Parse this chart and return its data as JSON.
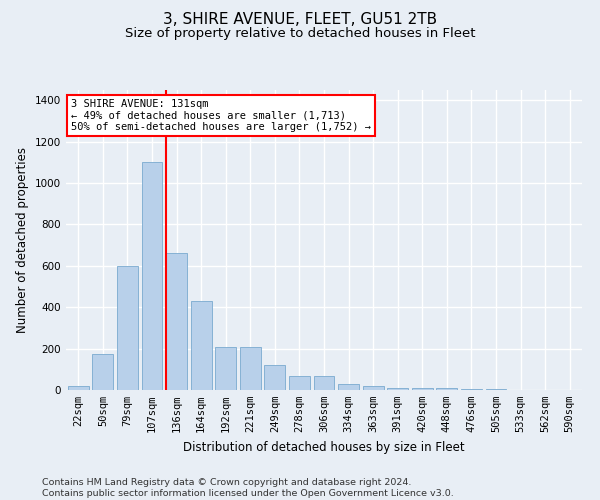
{
  "title": "3, SHIRE AVENUE, FLEET, GU51 2TB",
  "subtitle": "Size of property relative to detached houses in Fleet",
  "xlabel": "Distribution of detached houses by size in Fleet",
  "ylabel": "Number of detached properties",
  "categories": [
    "22sqm",
    "50sqm",
    "79sqm",
    "107sqm",
    "136sqm",
    "164sqm",
    "192sqm",
    "221sqm",
    "249sqm",
    "278sqm",
    "306sqm",
    "334sqm",
    "363sqm",
    "391sqm",
    "420sqm",
    "448sqm",
    "476sqm",
    "505sqm",
    "533sqm",
    "562sqm",
    "590sqm"
  ],
  "values": [
    20,
    175,
    600,
    1100,
    660,
    430,
    210,
    210,
    120,
    70,
    70,
    30,
    20,
    10,
    10,
    10,
    5,
    3,
    2,
    1,
    0
  ],
  "bar_color": "#b8d0ea",
  "bar_edge_color": "#7aaacf",
  "red_line_x": 3.57,
  "annotation_line1": "3 SHIRE AVENUE: 131sqm",
  "annotation_line2": "← 49% of detached houses are smaller (1,713)",
  "annotation_line3": "50% of semi-detached houses are larger (1,752) →",
  "ylim": [
    0,
    1450
  ],
  "yticks": [
    0,
    200,
    400,
    600,
    800,
    1000,
    1200,
    1400
  ],
  "bg_color": "#e8eef5",
  "grid_color": "#ffffff",
  "title_fontsize": 11,
  "subtitle_fontsize": 9.5,
  "axis_label_fontsize": 8.5,
  "tick_fontsize": 7.5,
  "annot_fontsize": 7.5,
  "footer_fontsize": 6.8,
  "footer": "Contains HM Land Registry data © Crown copyright and database right 2024.\nContains public sector information licensed under the Open Government Licence v3.0."
}
